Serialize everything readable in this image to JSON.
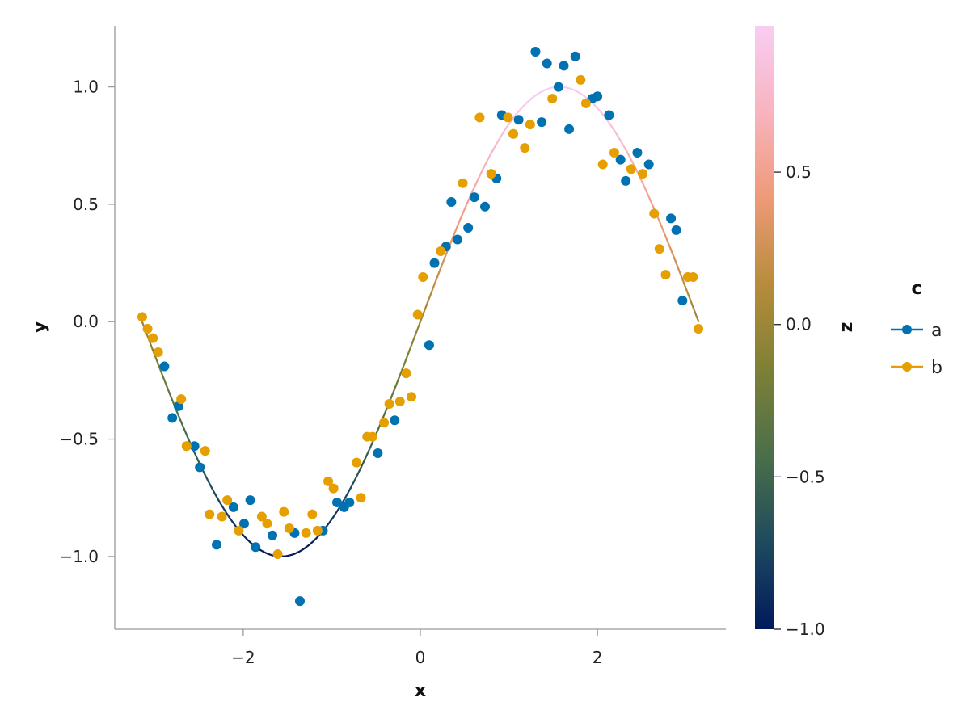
{
  "chart_data": {
    "type": "scatter",
    "xlabel": "x",
    "ylabel": "y",
    "xlim": [
      -3.45,
      3.45
    ],
    "ylim": [
      -1.31,
      1.26
    ],
    "xticks": [
      -2,
      0,
      2
    ],
    "xtick_labels": [
      "−2",
      "0",
      "2"
    ],
    "yticks": [
      -1.0,
      -0.5,
      0.0,
      0.5,
      1.0
    ],
    "ytick_labels": [
      "−1.0",
      "−0.5",
      "0.0",
      "0.5",
      "1.0"
    ],
    "grid": false,
    "series": [
      {
        "name": "a",
        "color": "#0072b2",
        "points": [
          [
            -2.89,
            -0.19
          ],
          [
            -2.8,
            -0.41
          ],
          [
            -2.73,
            -0.36
          ],
          [
            -2.55,
            -0.53
          ],
          [
            -2.49,
            -0.62
          ],
          [
            -2.3,
            -0.95
          ],
          [
            -2.11,
            -0.79
          ],
          [
            -1.99,
            -0.86
          ],
          [
            -1.92,
            -0.76
          ],
          [
            -1.86,
            -0.96
          ],
          [
            -1.67,
            -0.91
          ],
          [
            -1.36,
            -1.19
          ],
          [
            -1.42,
            -0.9
          ],
          [
            -1.1,
            -0.89
          ],
          [
            -0.94,
            -0.77
          ],
          [
            -0.86,
            -0.79
          ],
          [
            -0.8,
            -0.77
          ],
          [
            -0.48,
            -0.56
          ],
          [
            -0.29,
            -0.42
          ],
          [
            0.1,
            -0.1
          ],
          [
            0.16,
            0.25
          ],
          [
            0.29,
            0.32
          ],
          [
            0.35,
            0.51
          ],
          [
            0.42,
            0.35
          ],
          [
            0.54,
            0.4
          ],
          [
            0.61,
            0.53
          ],
          [
            0.73,
            0.49
          ],
          [
            0.86,
            0.61
          ],
          [
            0.92,
            0.88
          ],
          [
            1.11,
            0.86
          ],
          [
            1.3,
            1.15
          ],
          [
            1.37,
            0.85
          ],
          [
            1.43,
            1.1
          ],
          [
            1.56,
            1.0
          ],
          [
            1.62,
            1.09
          ],
          [
            1.68,
            0.82
          ],
          [
            1.75,
            1.13
          ],
          [
            1.94,
            0.95
          ],
          [
            2.0,
            0.96
          ],
          [
            2.13,
            0.88
          ],
          [
            2.26,
            0.69
          ],
          [
            2.32,
            0.6
          ],
          [
            2.45,
            0.72
          ],
          [
            2.58,
            0.67
          ],
          [
            2.83,
            0.44
          ],
          [
            2.89,
            0.39
          ],
          [
            2.96,
            0.09
          ]
        ]
      },
      {
        "name": "b",
        "color": "#e69f00",
        "points": [
          [
            -3.14,
            0.02
          ],
          [
            -3.08,
            -0.03
          ],
          [
            -3.02,
            -0.07
          ],
          [
            -2.96,
            -0.13
          ],
          [
            -2.7,
            -0.33
          ],
          [
            -2.64,
            -0.53
          ],
          [
            -2.43,
            -0.55
          ],
          [
            -2.38,
            -0.82
          ],
          [
            -2.24,
            -0.83
          ],
          [
            -2.18,
            -0.76
          ],
          [
            -2.05,
            -0.89
          ],
          [
            -1.79,
            -0.83
          ],
          [
            -1.73,
            -0.86
          ],
          [
            -1.61,
            -0.99
          ],
          [
            -1.54,
            -0.81
          ],
          [
            -1.48,
            -0.88
          ],
          [
            -1.29,
            -0.9
          ],
          [
            -1.22,
            -0.82
          ],
          [
            -1.16,
            -0.89
          ],
          [
            -1.04,
            -0.68
          ],
          [
            -0.98,
            -0.71
          ],
          [
            -0.72,
            -0.6
          ],
          [
            -0.67,
            -0.75
          ],
          [
            -0.6,
            -0.49
          ],
          [
            -0.54,
            -0.49
          ],
          [
            -0.41,
            -0.43
          ],
          [
            -0.35,
            -0.35
          ],
          [
            -0.23,
            -0.34
          ],
          [
            -0.16,
            -0.22
          ],
          [
            -0.1,
            -0.32
          ],
          [
            -0.03,
            0.03
          ],
          [
            0.03,
            0.19
          ],
          [
            0.23,
            0.3
          ],
          [
            0.48,
            0.59
          ],
          [
            0.67,
            0.87
          ],
          [
            0.8,
            0.63
          ],
          [
            0.99,
            0.87
          ],
          [
            1.05,
            0.8
          ],
          [
            1.18,
            0.74
          ],
          [
            1.24,
            0.84
          ],
          [
            1.49,
            0.95
          ],
          [
            1.81,
            1.03
          ],
          [
            1.87,
            0.93
          ],
          [
            2.06,
            0.67
          ],
          [
            2.19,
            0.72
          ],
          [
            2.38,
            0.65
          ],
          [
            2.51,
            0.63
          ],
          [
            2.64,
            0.46
          ],
          [
            2.7,
            0.31
          ],
          [
            2.77,
            0.2
          ],
          [
            3.02,
            0.19
          ],
          [
            3.08,
            0.19
          ],
          [
            3.14,
            -0.03
          ]
        ]
      }
    ],
    "curve": {
      "function": "sin",
      "x_range": [
        -3.14,
        3.14
      ],
      "colored_by": "z",
      "z_equals": "y"
    },
    "colorbar": {
      "label": "z",
      "range": [
        -1.0,
        0.98
      ],
      "ticks": [
        -1.0,
        -0.5,
        0.0,
        0.5
      ],
      "tick_labels": [
        "−1.0",
        "−0.5",
        "0.0",
        "0.5"
      ],
      "colormap_stops": [
        "#001a5c",
        "#1e4a5e",
        "#4a6f4a",
        "#7d8036",
        "#b78c3a",
        "#ee9a78",
        "#f8b4bf",
        "#f9cdf3"
      ]
    },
    "legend": {
      "title": "c",
      "placement": "right",
      "entries": [
        {
          "label": "a",
          "color": "#0072b2"
        },
        {
          "label": "b",
          "color": "#e69f00"
        }
      ]
    }
  }
}
